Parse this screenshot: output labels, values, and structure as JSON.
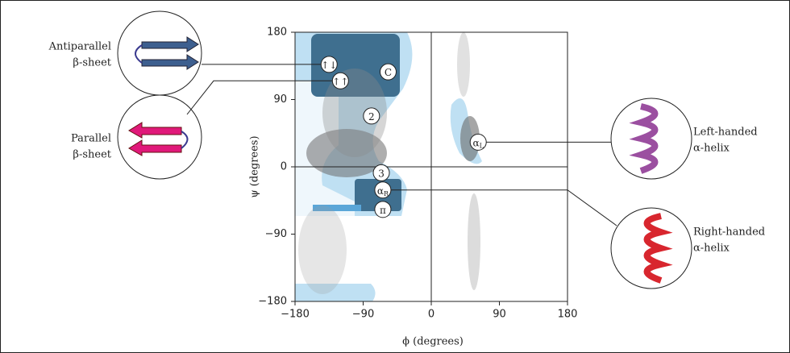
{
  "chart_data": {
    "type": "ramachandran",
    "x_label": "ϕ (degrees)",
    "y_label": "ψ (degrees)",
    "xlim": [
      -180,
      180
    ],
    "ylim": [
      -180,
      180
    ],
    "xticks": [
      {
        "value": -180,
        "label": "−180"
      },
      {
        "value": -90,
        "label": "−90"
      },
      0,
      90,
      180
    ],
    "yticks": [
      {
        "value": -180,
        "label": "−180"
      },
      {
        "value": -90,
        "label": "−90"
      },
      0,
      90,
      180
    ],
    "regions": [
      {
        "label": "↑↓",
        "x": -135,
        "y": 137
      },
      {
        "label": "↑↑",
        "x": -120,
        "y": 115
      },
      {
        "label": "C",
        "x": -57,
        "y": 127
      },
      {
        "label": "2",
        "x": -79,
        "y": 68
      },
      {
        "label": "3",
        "x": -66,
        "y": -8
      },
      {
        "label": "α",
        "sub": "R",
        "x": -64,
        "y": -31
      },
      {
        "label": "π",
        "x": -64,
        "y": -57
      },
      {
        "label": "α",
        "sub": "L",
        "x": 62,
        "y": 33
      }
    ],
    "callouts": [
      [
        "Antiparallel",
        "β-sheet"
      ],
      [
        "Parallel",
        "β-sheet"
      ],
      [
        "Left-handed",
        "α-helix"
      ],
      [
        "Right-handed",
        "α-helix"
      ]
    ]
  }
}
